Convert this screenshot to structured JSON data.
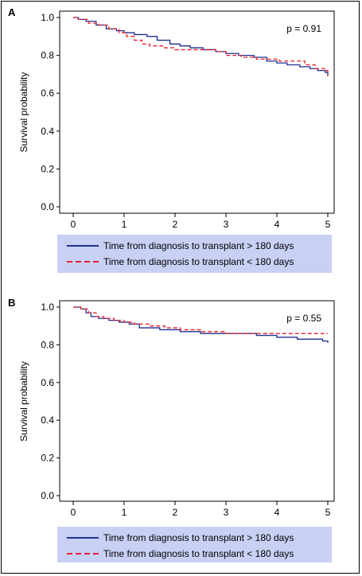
{
  "chart_data": [
    {
      "type": "line",
      "panel_label": "A",
      "ylabel": "Survival probability",
      "xlim": [
        0,
        5
      ],
      "ylim": [
        0,
        1.0
      ],
      "xticks": [
        "0",
        "1",
        "2",
        "3",
        "4",
        "5"
      ],
      "yticks": [
        "0.0",
        "0.2",
        "0.4",
        "0.6",
        "0.8",
        "1.0"
      ],
      "annotation": "p = 0.91",
      "legend_position": "bottom",
      "series": [
        {
          "name": "Time from diagnosis to transplant > 180 days",
          "color": "#1f2f8f",
          "dash": "solid",
          "x": [
            0,
            0.1,
            0.25,
            0.45,
            0.65,
            0.85,
            1.0,
            1.2,
            1.45,
            1.65,
            1.9,
            2.1,
            2.3,
            2.55,
            2.8,
            3.0,
            3.25,
            3.55,
            3.8,
            4.0,
            4.2,
            4.45,
            4.65,
            4.8,
            4.95,
            5.0
          ],
          "y": [
            1.0,
            0.99,
            0.98,
            0.96,
            0.94,
            0.93,
            0.92,
            0.91,
            0.9,
            0.88,
            0.86,
            0.85,
            0.84,
            0.83,
            0.82,
            0.81,
            0.8,
            0.79,
            0.77,
            0.76,
            0.75,
            0.74,
            0.73,
            0.72,
            0.71,
            0.69
          ]
        },
        {
          "name": "Time from diagnosis to transplant < 180 days",
          "color": "#e8202a",
          "dash": "dashed",
          "x": [
            0,
            0.1,
            0.3,
            0.5,
            0.7,
            0.9,
            1.05,
            1.2,
            1.35,
            1.5,
            1.75,
            2.0,
            2.3,
            2.55,
            2.8,
            3.0,
            3.3,
            3.6,
            3.85,
            4.05,
            4.3,
            4.55,
            4.75,
            4.95,
            5.0
          ],
          "y": [
            1.0,
            0.99,
            0.97,
            0.96,
            0.94,
            0.92,
            0.9,
            0.88,
            0.86,
            0.85,
            0.84,
            0.83,
            0.83,
            0.83,
            0.82,
            0.8,
            0.79,
            0.78,
            0.78,
            0.77,
            0.77,
            0.75,
            0.73,
            0.72,
            0.69
          ]
        }
      ]
    },
    {
      "type": "line",
      "panel_label": "B",
      "ylabel": "Survival probability",
      "xlim": [
        0,
        5
      ],
      "ylim": [
        0,
        1.0
      ],
      "xticks": [
        "0",
        "1",
        "2",
        "3",
        "4",
        "5"
      ],
      "yticks": [
        "0.0",
        "0.2",
        "0.4",
        "0.6",
        "0.8",
        "1.0"
      ],
      "annotation": "p = 0.55",
      "legend_position": "bottom",
      "series": [
        {
          "name": "Time from diagnosis to transplant > 180 days",
          "color": "#1f2f8f",
          "dash": "solid",
          "x": [
            0,
            0.15,
            0.25,
            0.35,
            0.5,
            0.7,
            0.9,
            1.1,
            1.3,
            1.7,
            2.1,
            2.5,
            3.0,
            3.6,
            4.0,
            4.4,
            4.7,
            4.9,
            5.0
          ],
          "y": [
            1.0,
            0.99,
            0.97,
            0.95,
            0.94,
            0.93,
            0.92,
            0.91,
            0.89,
            0.88,
            0.87,
            0.86,
            0.86,
            0.85,
            0.84,
            0.83,
            0.83,
            0.82,
            0.81
          ]
        },
        {
          "name": "Time from diagnosis to transplant < 180 days",
          "color": "#e8202a",
          "dash": "dashed",
          "x": [
            0,
            0.15,
            0.3,
            0.45,
            0.6,
            0.8,
            1.0,
            1.2,
            1.5,
            1.8,
            2.1,
            2.5,
            3.0,
            5.0
          ],
          "y": [
            1.0,
            0.99,
            0.97,
            0.95,
            0.94,
            0.93,
            0.92,
            0.91,
            0.9,
            0.89,
            0.88,
            0.87,
            0.86,
            0.86
          ]
        }
      ]
    }
  ]
}
